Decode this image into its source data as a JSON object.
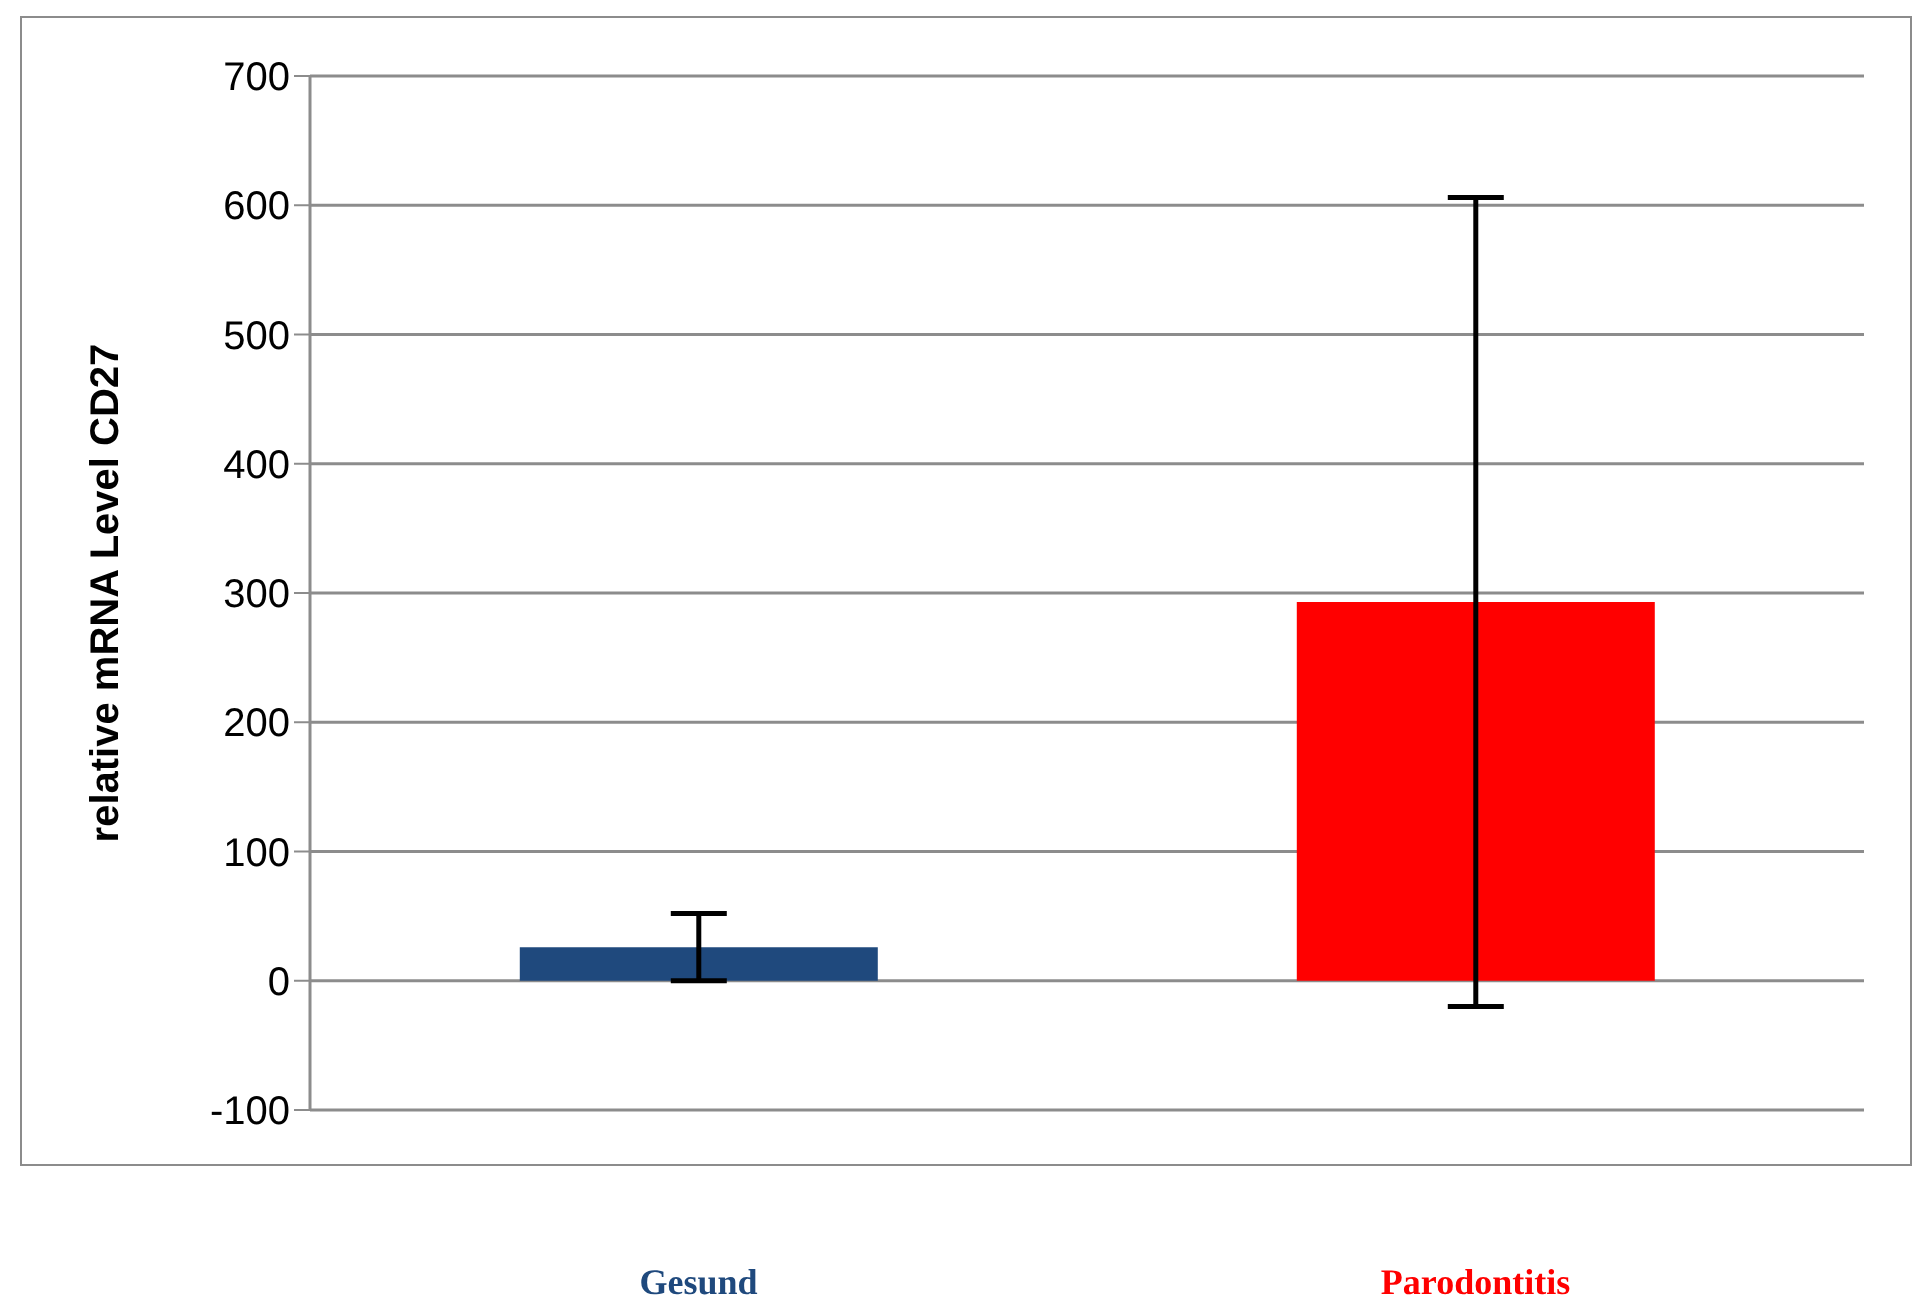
{
  "chart_data": {
    "type": "bar",
    "ylabel": "relative mRNA Level CD27",
    "categories": [
      "Gesund",
      "Parodontitis"
    ],
    "values": [
      26,
      293
    ],
    "colors": [
      "#1f497d",
      "#ff0000"
    ],
    "errors": [
      26,
      313
    ],
    "ylim": [
      -100,
      700
    ],
    "yticks": [
      -100,
      0,
      100,
      200,
      300,
      400,
      500,
      600,
      700
    ],
    "grid": "y"
  }
}
